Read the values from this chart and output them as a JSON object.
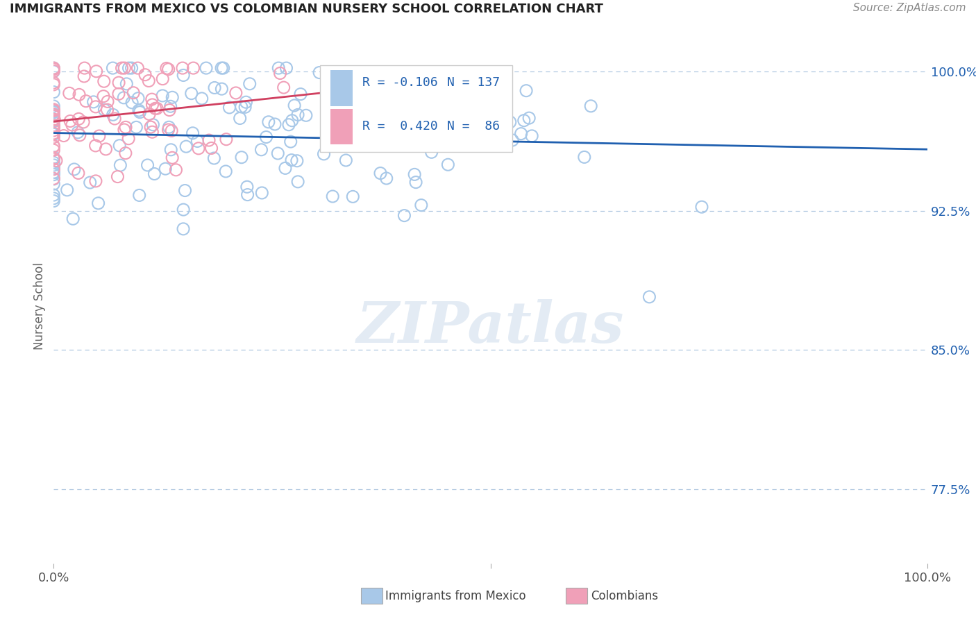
{
  "title": "IMMIGRANTS FROM MEXICO VS COLOMBIAN NURSERY SCHOOL CORRELATION CHART",
  "source": "Source: ZipAtlas.com",
  "ylabel": "Nursery School",
  "ytick_labels": [
    "77.5%",
    "85.0%",
    "92.5%",
    "100.0%"
  ],
  "ytick_values": [
    0.775,
    0.85,
    0.925,
    1.0
  ],
  "watermark": "ZIPatlas",
  "blue_color": "#a8c8e8",
  "pink_color": "#f0a0b8",
  "blue_line_color": "#2060b0",
  "pink_line_color": "#d04060",
  "background_color": "#ffffff",
  "grid_color": "#b0c8e0",
  "seed": 42,
  "n_blue": 137,
  "n_pink": 86,
  "r_blue_label": "-0.106",
  "r_pink_label": "0.420",
  "legend_r_blue": "R = -0.106",
  "legend_n_blue": "N = 137",
  "legend_r_pink": "R =  0.420",
  "legend_n_pink": "N =  86"
}
